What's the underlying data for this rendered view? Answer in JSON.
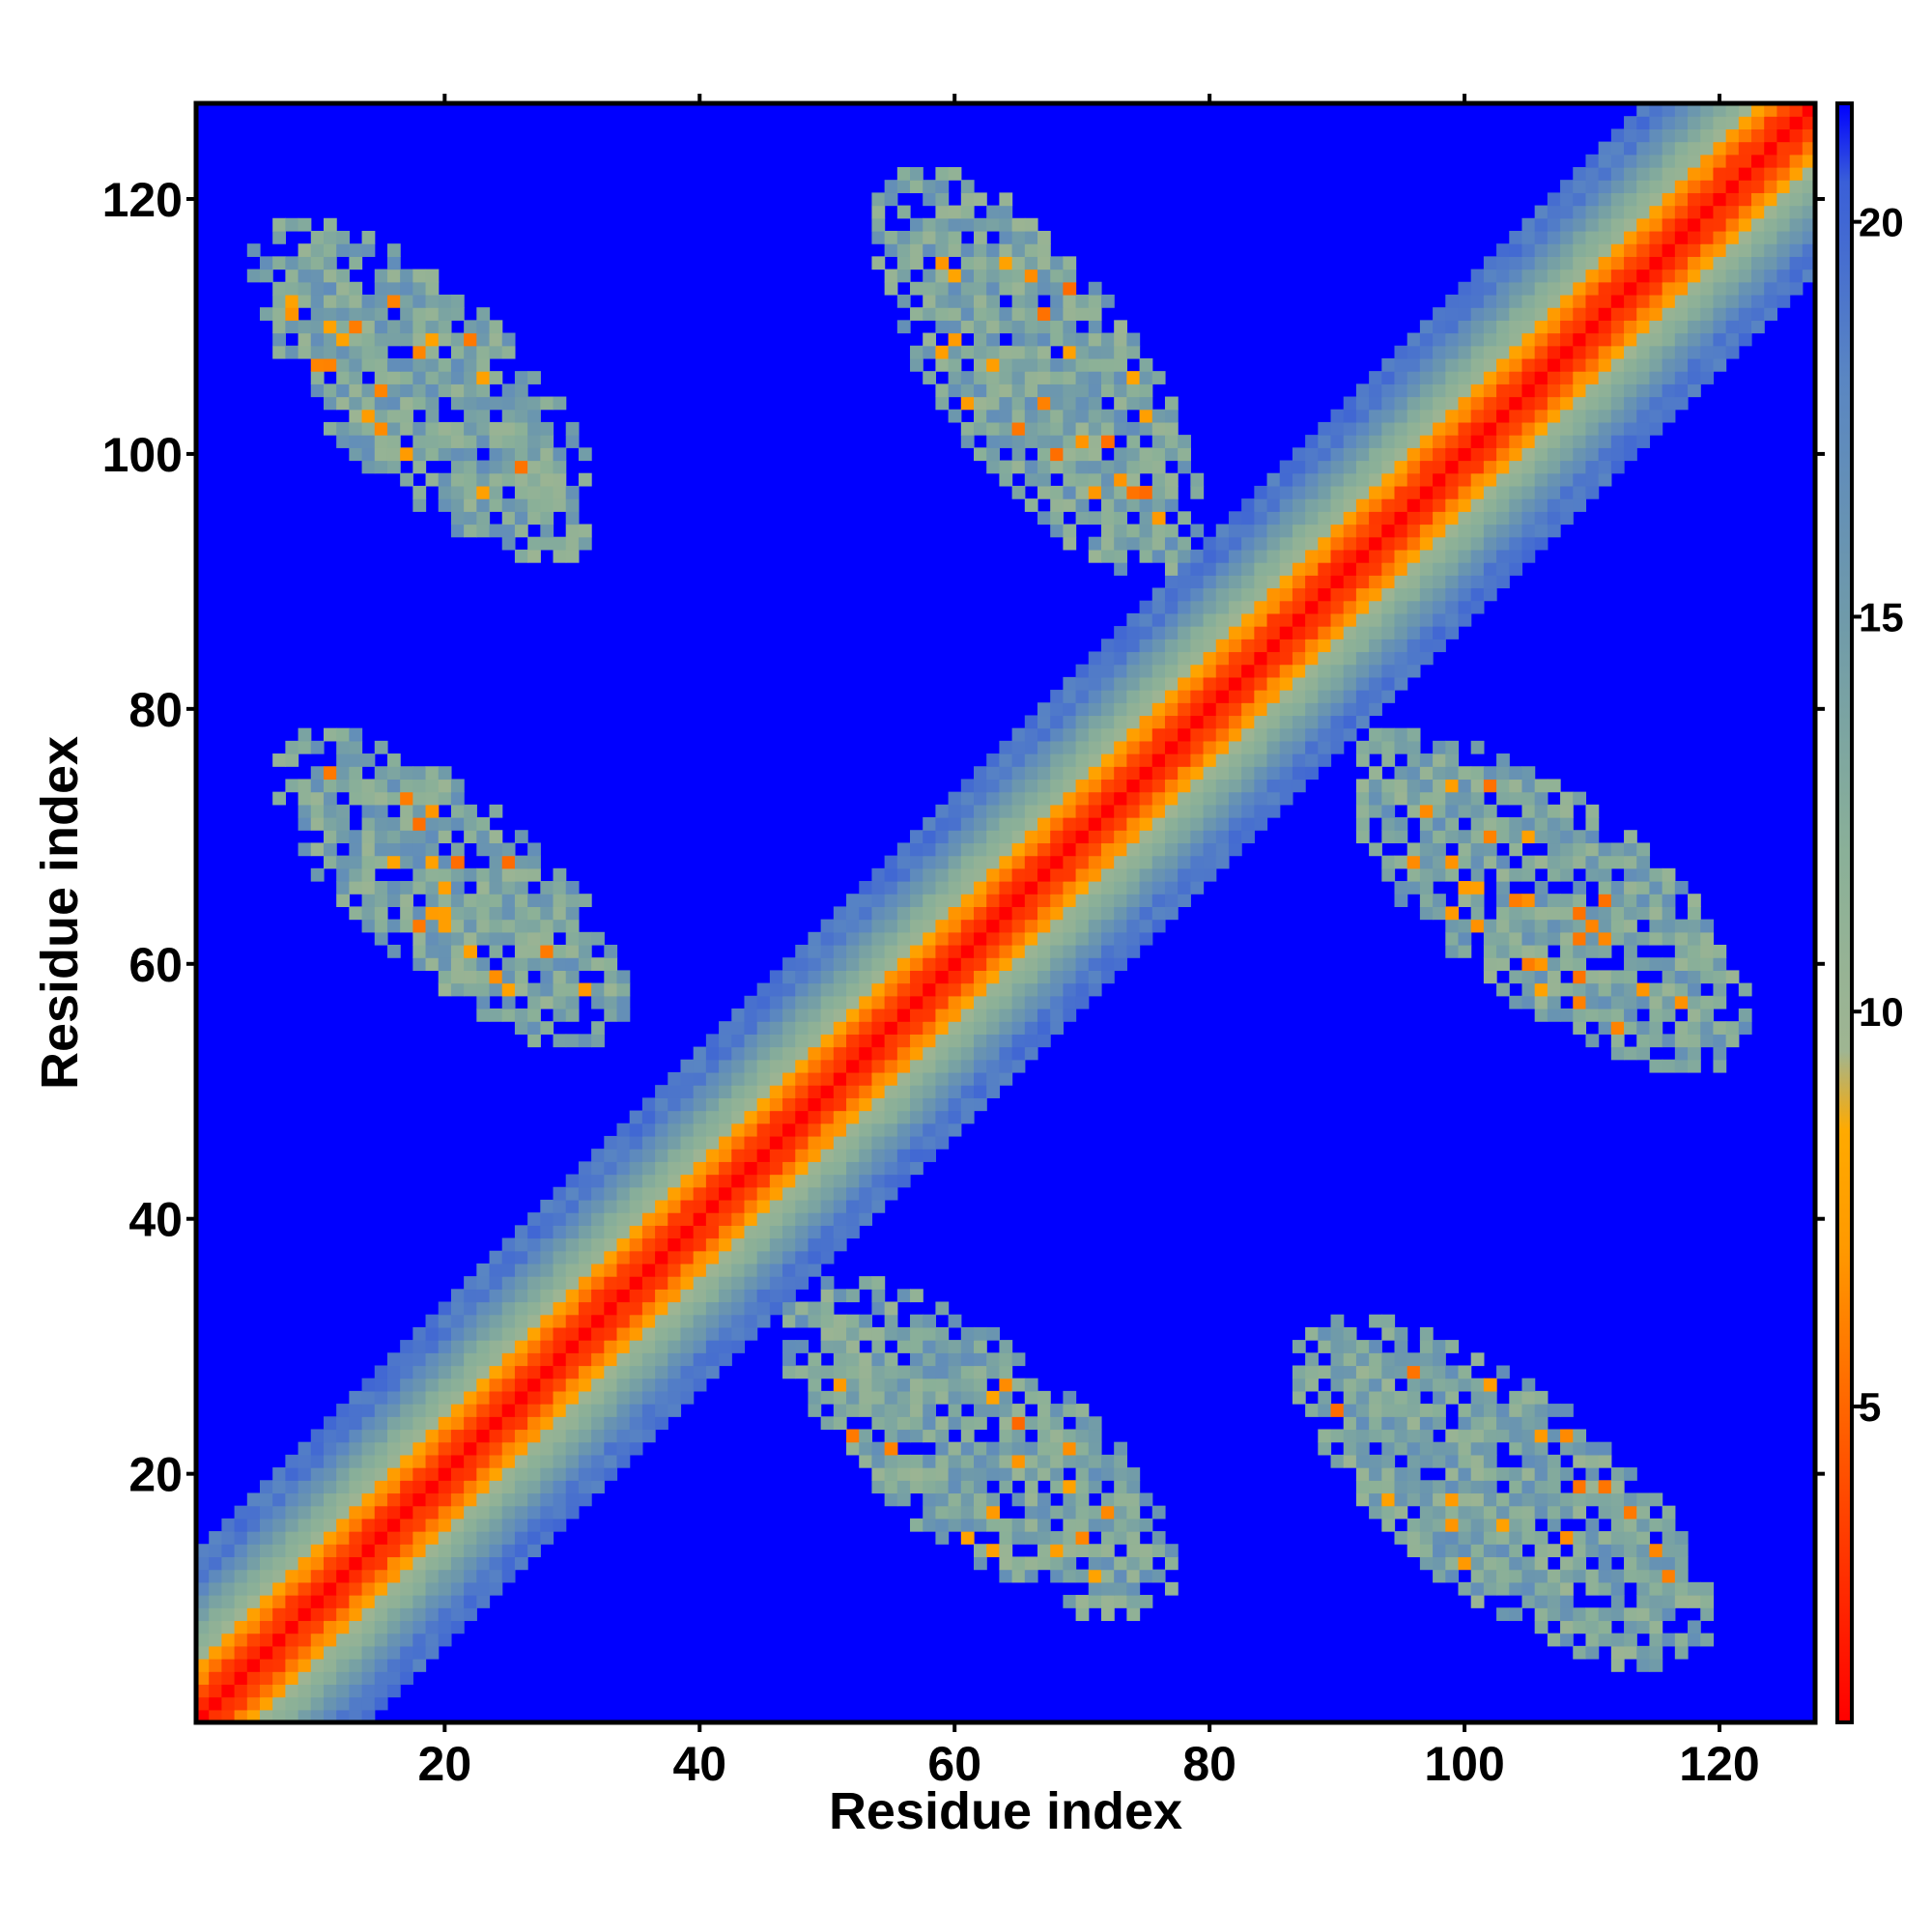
{
  "chart_data": {
    "type": "heatmap",
    "title": "",
    "xlabel": "Residue index",
    "ylabel": "Residue index",
    "xlim": [
      1,
      127
    ],
    "ylim": [
      1,
      127
    ],
    "n_residues": 127,
    "x_ticks": [
      "20",
      "40",
      "60",
      "80",
      "100",
      "120"
    ],
    "y_ticks": [
      "20",
      "40",
      "60",
      "80",
      "100",
      "120"
    ],
    "x_tick_values": [
      20,
      40,
      60,
      80,
      100,
      120
    ],
    "y_tick_values": [
      20,
      40,
      60,
      80,
      100,
      120
    ],
    "colorbar": {
      "range": [
        1,
        21.5
      ],
      "ticks": [
        "5",
        "10",
        "15",
        "20"
      ],
      "tick_values": [
        5,
        10,
        15,
        20
      ],
      "stops": [
        {
          "value": 1,
          "color": "#ff0000"
        },
        {
          "value": 3,
          "color": "#ff3300"
        },
        {
          "value": 5,
          "color": "#ff6600"
        },
        {
          "value": 7,
          "color": "#ff9900"
        },
        {
          "value": 8.5,
          "color": "#ffaa00"
        },
        {
          "value": 9.5,
          "color": "#9fb592"
        },
        {
          "value": 12,
          "color": "#8ab098"
        },
        {
          "value": 15,
          "color": "#6f9aaa"
        },
        {
          "value": 18,
          "color": "#5a86c2"
        },
        {
          "value": 20.5,
          "color": "#3a5fd8"
        },
        {
          "value": 21.5,
          "color": "#0000ff"
        }
      ]
    },
    "background_value": 21.5,
    "structure": {
      "diagonal": "continuous band along x = y from residue 1 to 127 with minimum distances near 1-4 on the diagonal, widening to about 15 off-diagonal",
      "contact_regions": [
        {
          "x_range": [
            1,
            36
          ],
          "y_range": [
            88,
            122
          ],
          "typical_value": 14
        },
        {
          "x_range": [
            3,
            38
          ],
          "y_range": [
            50,
            82
          ],
          "typical_value": 14
        },
        {
          "x_range": [
            50,
            83
          ],
          "y_range": [
            86,
            127
          ],
          "typical_value": 14
        },
        {
          "x_range": [
            42,
            82
          ],
          "y_range": [
            5,
            39
          ],
          "typical_value": 14
        },
        {
          "x_range": [
            86,
            127
          ],
          "y_range": [
            48,
            82
          ],
          "typical_value": 14
        },
        {
          "x_range": [
            82,
            124
          ],
          "y_range": [
            1,
            36
          ],
          "typical_value": 14
        }
      ]
    }
  }
}
